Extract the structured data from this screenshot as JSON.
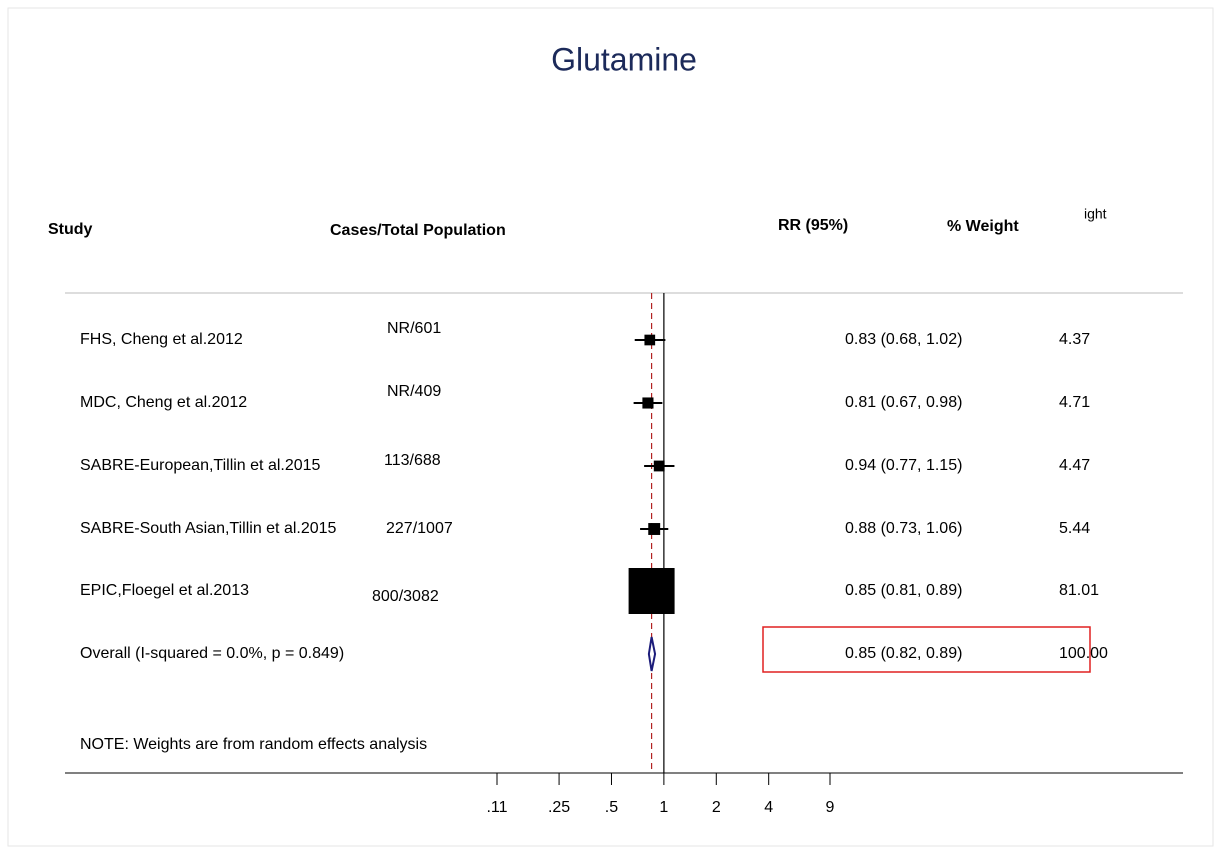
{
  "chart_data": {
    "type": "forest",
    "title": "Glutamine",
    "headers": {
      "study": "Study",
      "cases": "Cases/Total Population",
      "rr": "RR (95%)",
      "weight": "% Weight",
      "clipped": "ight"
    },
    "studies": [
      "FHS, Cheng et al.2012",
      "MDC, Cheng et al.2012",
      "SABRE-European,Tillin et al.2015",
      "SABRE-South Asian,Tillin et al.2015",
      "EPIC,Floegel et al.2013"
    ],
    "cases": [
      "NR/601",
      "NR/409",
      "113/688",
      "227/1007",
      "800/3082"
    ],
    "rr": [
      0.83,
      0.81,
      0.94,
      0.88,
      0.85
    ],
    "lower": [
      0.68,
      0.67,
      0.77,
      0.73,
      0.81
    ],
    "upper": [
      1.02,
      0.98,
      1.15,
      1.06,
      0.89
    ],
    "rr_labels": [
      "0.83 (0.68, 1.02)",
      "0.81 (0.67, 0.98)",
      "0.94 (0.77, 1.15)",
      "0.88 (0.73, 1.06)",
      "0.85 (0.81, 0.89)"
    ],
    "weights": [
      4.37,
      4.71,
      4.47,
      5.44,
      81.01
    ],
    "weight_labels": [
      "4.37",
      "4.71",
      "4.47",
      "5.44",
      "81.01"
    ],
    "overall": {
      "label": "Overall  (I-squared = 0.0%, p = 0.849)",
      "rr": 0.85,
      "lower": 0.82,
      "upper": 0.89,
      "rr_label": "0.85 (0.82, 0.89)",
      "weight": 100,
      "weight_label": "100.00"
    },
    "note": "NOTE: Weights are from random effects analysis",
    "null_line": 1,
    "log_x": true,
    "xlim": [
      0.11,
      9
    ],
    "xticks": [
      {
        "value": 0.11,
        "label": ".11"
      },
      {
        "value": 0.25,
        "label": ".25"
      },
      {
        "value": 0.5,
        "label": ".5"
      },
      1,
      2,
      4,
      9
    ],
    "title_color": "#1c2a5a",
    "box_color": "#000000",
    "diamond_color": "#1c1c7a",
    "overall_line_color": "#b22222"
  }
}
